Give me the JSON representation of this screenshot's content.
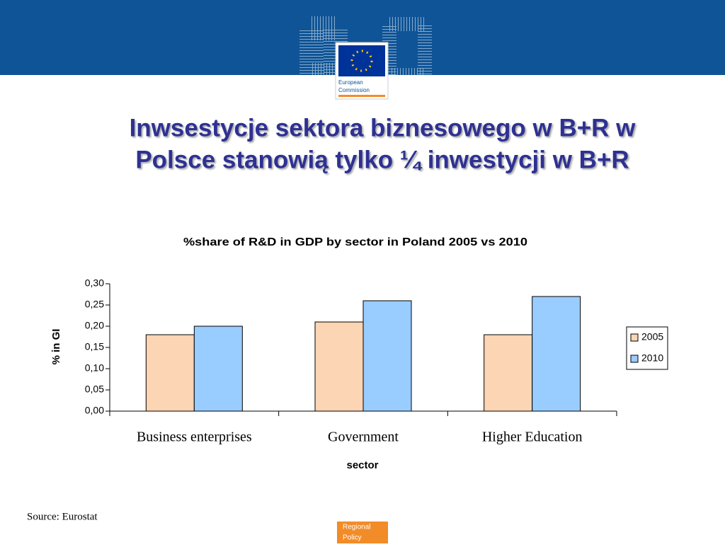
{
  "header": {
    "logo_text": [
      "European",
      "Commission"
    ]
  },
  "slide_title": [
    "Inwsestycje sektora biznesowego w B+R w",
    "Polsce stanowią tylko ¼  inwestycji w B+R"
  ],
  "chart_data": {
    "type": "bar",
    "title": "%share of R&D in GDP by sector in Poland 2005 vs 2010",
    "y_label": "% in GI",
    "x_label": "sector",
    "categories": [
      "Business enterprises",
      "Government",
      "Higher Education"
    ],
    "series": [
      {
        "name": "2005",
        "color": "#fcd5b4",
        "values": [
          0.18,
          0.21,
          0.18
        ]
      },
      {
        "name": "2010",
        "color": "#99ccff",
        "values": [
          0.2,
          0.26,
          0.27
        ]
      }
    ],
    "ylim": [
      0,
      0.3
    ],
    "yticks": [
      {
        "value": 0,
        "label": "0,00"
      },
      {
        "value": 0.05,
        "label": "0,05"
      },
      {
        "value": 0.1,
        "label": "0,10"
      },
      {
        "value": 0.15,
        "label": "0,15"
      },
      {
        "value": 0.2,
        "label": "0,20"
      },
      {
        "value": 0.25,
        "label": "0,25"
      },
      {
        "value": 0.3,
        "label": "0,30"
      }
    ],
    "legend": "right",
    "grid": false
  },
  "source": "Source: Eurostat",
  "footer": [
    "Regional",
    "Policy"
  ]
}
